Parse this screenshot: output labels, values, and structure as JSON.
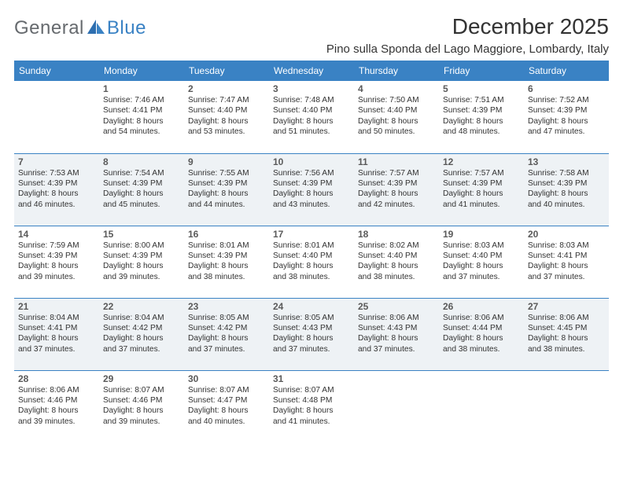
{
  "brand": {
    "word1": "General",
    "word2": "Blue"
  },
  "title": "December 2025",
  "location": "Pino sulla Sponda del Lago Maggiore, Lombardy, Italy",
  "colors": {
    "accent": "#3a82c4",
    "shade": "#eef2f5",
    "text": "#333333",
    "logo_gray": "#666a6e"
  },
  "days": [
    "Sunday",
    "Monday",
    "Tuesday",
    "Wednesday",
    "Thursday",
    "Friday",
    "Saturday"
  ],
  "weeks": [
    {
      "shaded": false,
      "cells": [
        {
          "day": null
        },
        {
          "day": "1",
          "sunrise": "Sunrise: 7:46 AM",
          "sunset": "Sunset: 4:41 PM",
          "dl1": "Daylight: 8 hours",
          "dl2": "and 54 minutes."
        },
        {
          "day": "2",
          "sunrise": "Sunrise: 7:47 AM",
          "sunset": "Sunset: 4:40 PM",
          "dl1": "Daylight: 8 hours",
          "dl2": "and 53 minutes."
        },
        {
          "day": "3",
          "sunrise": "Sunrise: 7:48 AM",
          "sunset": "Sunset: 4:40 PM",
          "dl1": "Daylight: 8 hours",
          "dl2": "and 51 minutes."
        },
        {
          "day": "4",
          "sunrise": "Sunrise: 7:50 AM",
          "sunset": "Sunset: 4:40 PM",
          "dl1": "Daylight: 8 hours",
          "dl2": "and 50 minutes."
        },
        {
          "day": "5",
          "sunrise": "Sunrise: 7:51 AM",
          "sunset": "Sunset: 4:39 PM",
          "dl1": "Daylight: 8 hours",
          "dl2": "and 48 minutes."
        },
        {
          "day": "6",
          "sunrise": "Sunrise: 7:52 AM",
          "sunset": "Sunset: 4:39 PM",
          "dl1": "Daylight: 8 hours",
          "dl2": "and 47 minutes."
        }
      ]
    },
    {
      "shaded": true,
      "cells": [
        {
          "day": "7",
          "sunrise": "Sunrise: 7:53 AM",
          "sunset": "Sunset: 4:39 PM",
          "dl1": "Daylight: 8 hours",
          "dl2": "and 46 minutes."
        },
        {
          "day": "8",
          "sunrise": "Sunrise: 7:54 AM",
          "sunset": "Sunset: 4:39 PM",
          "dl1": "Daylight: 8 hours",
          "dl2": "and 45 minutes."
        },
        {
          "day": "9",
          "sunrise": "Sunrise: 7:55 AM",
          "sunset": "Sunset: 4:39 PM",
          "dl1": "Daylight: 8 hours",
          "dl2": "and 44 minutes."
        },
        {
          "day": "10",
          "sunrise": "Sunrise: 7:56 AM",
          "sunset": "Sunset: 4:39 PM",
          "dl1": "Daylight: 8 hours",
          "dl2": "and 43 minutes."
        },
        {
          "day": "11",
          "sunrise": "Sunrise: 7:57 AM",
          "sunset": "Sunset: 4:39 PM",
          "dl1": "Daylight: 8 hours",
          "dl2": "and 42 minutes."
        },
        {
          "day": "12",
          "sunrise": "Sunrise: 7:57 AM",
          "sunset": "Sunset: 4:39 PM",
          "dl1": "Daylight: 8 hours",
          "dl2": "and 41 minutes."
        },
        {
          "day": "13",
          "sunrise": "Sunrise: 7:58 AM",
          "sunset": "Sunset: 4:39 PM",
          "dl1": "Daylight: 8 hours",
          "dl2": "and 40 minutes."
        }
      ]
    },
    {
      "shaded": false,
      "cells": [
        {
          "day": "14",
          "sunrise": "Sunrise: 7:59 AM",
          "sunset": "Sunset: 4:39 PM",
          "dl1": "Daylight: 8 hours",
          "dl2": "and 39 minutes."
        },
        {
          "day": "15",
          "sunrise": "Sunrise: 8:00 AM",
          "sunset": "Sunset: 4:39 PM",
          "dl1": "Daylight: 8 hours",
          "dl2": "and 39 minutes."
        },
        {
          "day": "16",
          "sunrise": "Sunrise: 8:01 AM",
          "sunset": "Sunset: 4:39 PM",
          "dl1": "Daylight: 8 hours",
          "dl2": "and 38 minutes."
        },
        {
          "day": "17",
          "sunrise": "Sunrise: 8:01 AM",
          "sunset": "Sunset: 4:40 PM",
          "dl1": "Daylight: 8 hours",
          "dl2": "and 38 minutes."
        },
        {
          "day": "18",
          "sunrise": "Sunrise: 8:02 AM",
          "sunset": "Sunset: 4:40 PM",
          "dl1": "Daylight: 8 hours",
          "dl2": "and 38 minutes."
        },
        {
          "day": "19",
          "sunrise": "Sunrise: 8:03 AM",
          "sunset": "Sunset: 4:40 PM",
          "dl1": "Daylight: 8 hours",
          "dl2": "and 37 minutes."
        },
        {
          "day": "20",
          "sunrise": "Sunrise: 8:03 AM",
          "sunset": "Sunset: 4:41 PM",
          "dl1": "Daylight: 8 hours",
          "dl2": "and 37 minutes."
        }
      ]
    },
    {
      "shaded": true,
      "cells": [
        {
          "day": "21",
          "sunrise": "Sunrise: 8:04 AM",
          "sunset": "Sunset: 4:41 PM",
          "dl1": "Daylight: 8 hours",
          "dl2": "and 37 minutes."
        },
        {
          "day": "22",
          "sunrise": "Sunrise: 8:04 AM",
          "sunset": "Sunset: 4:42 PM",
          "dl1": "Daylight: 8 hours",
          "dl2": "and 37 minutes."
        },
        {
          "day": "23",
          "sunrise": "Sunrise: 8:05 AM",
          "sunset": "Sunset: 4:42 PM",
          "dl1": "Daylight: 8 hours",
          "dl2": "and 37 minutes."
        },
        {
          "day": "24",
          "sunrise": "Sunrise: 8:05 AM",
          "sunset": "Sunset: 4:43 PM",
          "dl1": "Daylight: 8 hours",
          "dl2": "and 37 minutes."
        },
        {
          "day": "25",
          "sunrise": "Sunrise: 8:06 AM",
          "sunset": "Sunset: 4:43 PM",
          "dl1": "Daylight: 8 hours",
          "dl2": "and 37 minutes."
        },
        {
          "day": "26",
          "sunrise": "Sunrise: 8:06 AM",
          "sunset": "Sunset: 4:44 PM",
          "dl1": "Daylight: 8 hours",
          "dl2": "and 38 minutes."
        },
        {
          "day": "27",
          "sunrise": "Sunrise: 8:06 AM",
          "sunset": "Sunset: 4:45 PM",
          "dl1": "Daylight: 8 hours",
          "dl2": "and 38 minutes."
        }
      ]
    },
    {
      "shaded": false,
      "cells": [
        {
          "day": "28",
          "sunrise": "Sunrise: 8:06 AM",
          "sunset": "Sunset: 4:46 PM",
          "dl1": "Daylight: 8 hours",
          "dl2": "and 39 minutes."
        },
        {
          "day": "29",
          "sunrise": "Sunrise: 8:07 AM",
          "sunset": "Sunset: 4:46 PM",
          "dl1": "Daylight: 8 hours",
          "dl2": "and 39 minutes."
        },
        {
          "day": "30",
          "sunrise": "Sunrise: 8:07 AM",
          "sunset": "Sunset: 4:47 PM",
          "dl1": "Daylight: 8 hours",
          "dl2": "and 40 minutes."
        },
        {
          "day": "31",
          "sunrise": "Sunrise: 8:07 AM",
          "sunset": "Sunset: 4:48 PM",
          "dl1": "Daylight: 8 hours",
          "dl2": "and 41 minutes."
        },
        {
          "day": null
        },
        {
          "day": null
        },
        {
          "day": null
        }
      ]
    }
  ]
}
